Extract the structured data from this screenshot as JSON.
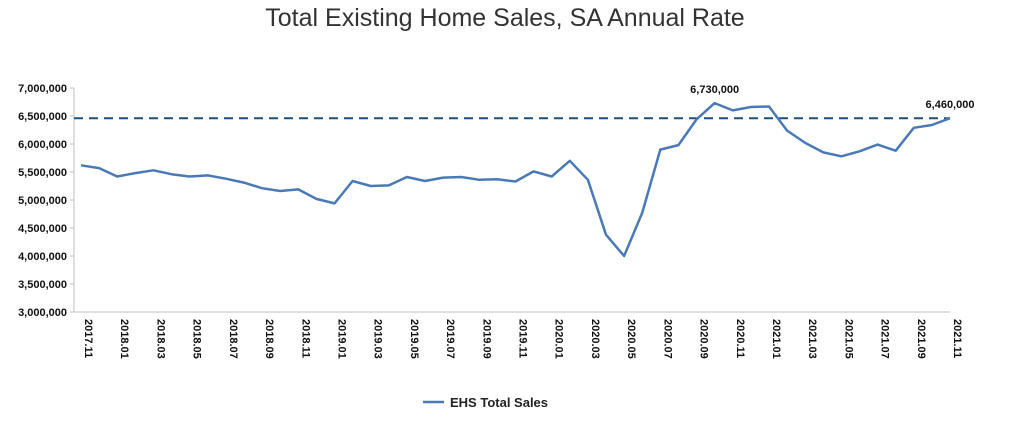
{
  "chart_data": {
    "type": "line",
    "title": "Total Existing Home Sales, SA Annual Rate",
    "xlabel": "",
    "ylabel": "",
    "ylim": [
      3000000,
      7000000
    ],
    "yticks": [
      3000000,
      3500000,
      4000000,
      4500000,
      5000000,
      5500000,
      6000000,
      6500000,
      7000000
    ],
    "ytick_labels": [
      "3,000,000",
      "3,500,000",
      "4,000,000",
      "4,500,000",
      "5,000,000",
      "5,500,000",
      "6,000,000",
      "6,500,000",
      "7,000,000"
    ],
    "x": [
      "2017.11",
      "2017.12",
      "2018.01",
      "2018.02",
      "2018.03",
      "2018.04",
      "2018.05",
      "2018.06",
      "2018.07",
      "2018.08",
      "2018.09",
      "2018.10",
      "2018.11",
      "2018.12",
      "2019.01",
      "2019.02",
      "2019.03",
      "2019.04",
      "2019.05",
      "2019.06",
      "2019.07",
      "2019.08",
      "2019.09",
      "2019.10",
      "2019.11",
      "2019.12",
      "2020.01",
      "2020.02",
      "2020.03",
      "2020.04",
      "2020.05",
      "2020.06",
      "2020.07",
      "2020.08",
      "2020.09",
      "2020.10",
      "2020.11",
      "2020.12",
      "2021.01",
      "2021.02",
      "2021.03",
      "2021.04",
      "2021.05",
      "2021.06",
      "2021.07",
      "2021.08",
      "2021.09",
      "2021.10",
      "2021.11"
    ],
    "x_tick_labels": [
      "2017.11",
      "2018.01",
      "2018.03",
      "2018.05",
      "2018.07",
      "2018.09",
      "2018.11",
      "2019.01",
      "2019.03",
      "2019.05",
      "2019.07",
      "2019.09",
      "2019.11",
      "2020.01",
      "2020.03",
      "2020.05",
      "2020.07",
      "2020.09",
      "2020.11",
      "2021.01",
      "2021.03",
      "2021.05",
      "2021.07",
      "2021.09",
      "2021.11"
    ],
    "series": [
      {
        "name": "EHS Total Sales",
        "color": "#4a7ab5",
        "values": [
          5620000,
          5570000,
          5420000,
          5480000,
          5530000,
          5460000,
          5420000,
          5440000,
          5380000,
          5310000,
          5210000,
          5160000,
          5190000,
          5020000,
          4940000,
          5340000,
          5250000,
          5260000,
          5410000,
          5340000,
          5400000,
          5410000,
          5360000,
          5370000,
          5330000,
          5510000,
          5420000,
          5700000,
          5360000,
          4380000,
          4000000,
          4770000,
          5900000,
          5980000,
          6440000,
          6730000,
          6600000,
          6660000,
          6670000,
          6240000,
          6020000,
          5850000,
          5780000,
          5870000,
          5990000,
          5880000,
          6290000,
          6340000,
          6460000
        ]
      }
    ],
    "reference_line": {
      "value": 6460000,
      "color": "#1f4e79",
      "style": "dashed"
    },
    "annotations": [
      {
        "x": "2020.10",
        "text": "6,730,000"
      },
      {
        "x": "2021.11",
        "text": "6,460,000"
      }
    ],
    "legend": {
      "position": "bottom",
      "entries": [
        "EHS Total Sales"
      ]
    },
    "grid": false
  }
}
